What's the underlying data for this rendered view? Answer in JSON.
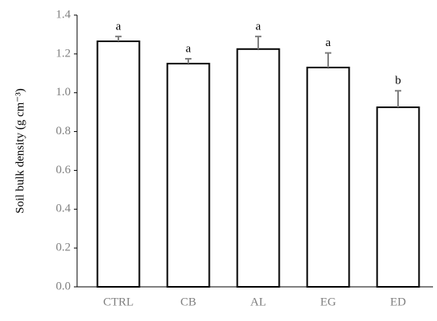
{
  "chart_data": {
    "type": "bar",
    "y_label": "Soil bulk density (g cm⁻³)",
    "categories": [
      "CTRL",
      "CB",
      "AL",
      "EG",
      "ED"
    ],
    "values": [
      1.265,
      1.15,
      1.225,
      1.13,
      0.925
    ],
    "errors": [
      0.025,
      0.025,
      0.065,
      0.075,
      0.085
    ],
    "annotations": [
      "a",
      "a",
      "a",
      "a",
      "b"
    ],
    "color": "#ffffff",
    "edge_color": "#000000",
    "error_color": "#7f7f7f",
    "ylim": [
      0,
      1.4
    ],
    "yticks": [
      {
        "value": 0,
        "label": "0.0"
      },
      0.2,
      0.4,
      0.6,
      0.8,
      {
        "value": 1,
        "label": "1.0"
      },
      1.2,
      1.4
    ],
    "grid": false
  }
}
